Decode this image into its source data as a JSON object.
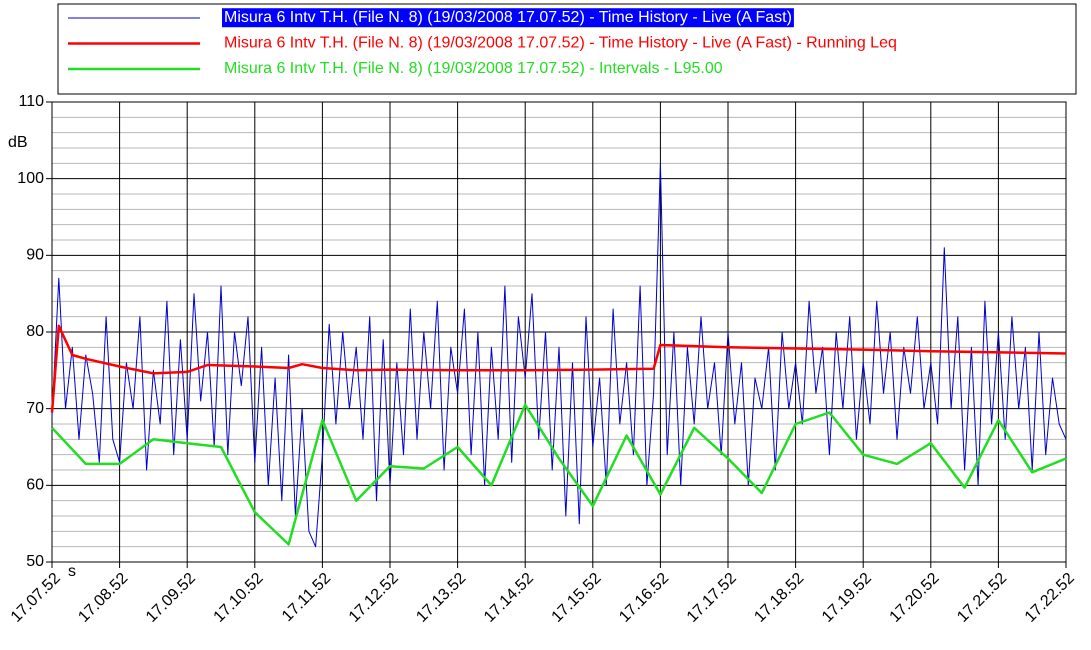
{
  "chart_data": {
    "type": "line",
    "ylabel": "dB",
    "xlabel": "s",
    "ylim": [
      50,
      110
    ],
    "yticks": [
      50,
      60,
      70,
      80,
      90,
      100,
      110
    ],
    "xlim": [
      0,
      15
    ],
    "xticks": [
      {
        "value": 0,
        "label": "17.07.52"
      },
      {
        "value": 1,
        "label": "17.08.52"
      },
      {
        "value": 2,
        "label": "17.09.52"
      },
      {
        "value": 3,
        "label": "17.10.52"
      },
      {
        "value": 4,
        "label": "17.11.52"
      },
      {
        "value": 5,
        "label": "17.12.52"
      },
      {
        "value": 6,
        "label": "17.13.52"
      },
      {
        "value": 7,
        "label": "17.14.52"
      },
      {
        "value": 8,
        "label": "17.15.52"
      },
      {
        "value": 9,
        "label": "17.16.52"
      },
      {
        "value": 10,
        "label": "17.17.52"
      },
      {
        "value": 11,
        "label": "17.18.52"
      },
      {
        "value": 12,
        "label": "17.19.52"
      },
      {
        "value": 13,
        "label": "17.20.52"
      },
      {
        "value": 14,
        "label": "17.21.52"
      },
      {
        "value": 15,
        "label": "17.22.52"
      }
    ],
    "grid": true,
    "series": [
      {
        "name": "Misura 6 Intv T.H.  (File N. 8) (19/03/2008 17.07.52) - Time History - Live (A Fast)",
        "color": "#0000cc",
        "x": [
          0,
          0.1,
          0.2,
          0.3,
          0.4,
          0.5,
          0.6,
          0.7,
          0.8,
          0.9,
          1,
          1.1,
          1.2,
          1.3,
          1.4,
          1.5,
          1.6,
          1.7,
          1.8,
          1.9,
          2,
          2.1,
          2.2,
          2.3,
          2.4,
          2.5,
          2.6,
          2.7,
          2.8,
          2.9,
          3,
          3.1,
          3.2,
          3.3,
          3.4,
          3.5,
          3.6,
          3.7,
          3.8,
          3.9,
          4,
          4.1,
          4.2,
          4.3,
          4.4,
          4.5,
          4.6,
          4.7,
          4.8,
          4.9,
          5,
          5.1,
          5.2,
          5.3,
          5.4,
          5.5,
          5.6,
          5.7,
          5.8,
          5.9,
          6,
          6.1,
          6.2,
          6.3,
          6.4,
          6.5,
          6.6,
          6.7,
          6.8,
          6.9,
          7,
          7.1,
          7.2,
          7.3,
          7.4,
          7.5,
          7.6,
          7.7,
          7.8,
          7.9,
          8,
          8.1,
          8.2,
          8.3,
          8.4,
          8.5,
          8.6,
          8.7,
          8.8,
          8.9,
          9,
          9.1,
          9.2,
          9.3,
          9.4,
          9.5,
          9.6,
          9.7,
          9.8,
          9.9,
          10,
          10.1,
          10.2,
          10.3,
          10.4,
          10.5,
          10.6,
          10.7,
          10.8,
          10.9,
          11,
          11.1,
          11.2,
          11.3,
          11.4,
          11.5,
          11.6,
          11.7,
          11.8,
          11.9,
          12,
          12.1,
          12.2,
          12.3,
          12.4,
          12.5,
          12.6,
          12.7,
          12.8,
          12.9,
          13,
          13.1,
          13.2,
          13.3,
          13.4,
          13.5,
          13.6,
          13.7,
          13.8,
          13.9,
          14,
          14.1,
          14.2,
          14.3,
          14.4,
          14.5,
          14.6,
          14.7,
          14.8,
          14.9,
          15
        ],
        "values": [
          69,
          87,
          70,
          78,
          66,
          77,
          72,
          63,
          82,
          66,
          63,
          76,
          70,
          82,
          62,
          75,
          68,
          84,
          64,
          79,
          66,
          85,
          71,
          80,
          65,
          86,
          64,
          80,
          73,
          82,
          63,
          78,
          60,
          74,
          58,
          77,
          56,
          70,
          54,
          52,
          64,
          81,
          68,
          80,
          70,
          78,
          66,
          82,
          58,
          79,
          60,
          76,
          64,
          83,
          66,
          80,
          70,
          84,
          62,
          78,
          72,
          83,
          64,
          80,
          60,
          78,
          66,
          86,
          63,
          82,
          74,
          85,
          66,
          80,
          62,
          78,
          56,
          76,
          55,
          82,
          65,
          74,
          60,
          83,
          68,
          76,
          64,
          86,
          60,
          72,
          102,
          64,
          80,
          60,
          78,
          68,
          82,
          70,
          76,
          64,
          80,
          68,
          76,
          60,
          74,
          70,
          78,
          62,
          80,
          70,
          76,
          68,
          84,
          72,
          78,
          64,
          80,
          70,
          82,
          66,
          76,
          68,
          84,
          72,
          80,
          66,
          78,
          72,
          82,
          70,
          76,
          68,
          91,
          70,
          82,
          62,
          78,
          60,
          84,
          68,
          80,
          66,
          82,
          70,
          78,
          62,
          80,
          64,
          74,
          68,
          66
        ]
      },
      {
        "name": "Misura 6 Intv T.H.  (File N. 8) (19/03/2008 17.07.52) - Time History - Live (A Fast) - Running Leq",
        "color": "#ff0000",
        "x": [
          0,
          0.1,
          0.3,
          0.5,
          1,
          1.5,
          2,
          2.3,
          3,
          3.5,
          3.7,
          4,
          4.5,
          5,
          6,
          7,
          8,
          8.9,
          9,
          10,
          12,
          13,
          15
        ],
        "values": [
          69.5,
          80.8,
          77,
          76.5,
          75.5,
          74.6,
          74.8,
          75.7,
          75.5,
          75.3,
          75.8,
          75.3,
          75,
          75.1,
          75,
          75,
          75.1,
          75.2,
          78.3,
          78,
          77.7,
          77.5,
          77.2
        ]
      },
      {
        "name": "Misura 6 Intv T.H.  (File N. 8) (19/03/2008 17.07.52) - Intervals - L95.00",
        "color": "#22dd22",
        "x": [
          0,
          0.5,
          1,
          1.5,
          2,
          2.5,
          3,
          3.5,
          4,
          4.5,
          5,
          5.5,
          6,
          6.5,
          7,
          7.5,
          8,
          8.5,
          9,
          9.5,
          10,
          10.5,
          11,
          11.5,
          12,
          12.5,
          13,
          13.5,
          14,
          14.5,
          15
        ],
        "values": [
          67.5,
          62.8,
          62.8,
          66,
          65.5,
          65,
          56.5,
          52.3,
          68.5,
          58,
          62.5,
          62.2,
          65,
          60,
          70.5,
          63.5,
          57.3,
          66.5,
          58.8,
          67.5,
          63.5,
          59,
          68,
          69.5,
          64,
          62.8,
          65.5,
          59.7,
          68.5,
          61.7,
          63.5
        ]
      }
    ]
  }
}
